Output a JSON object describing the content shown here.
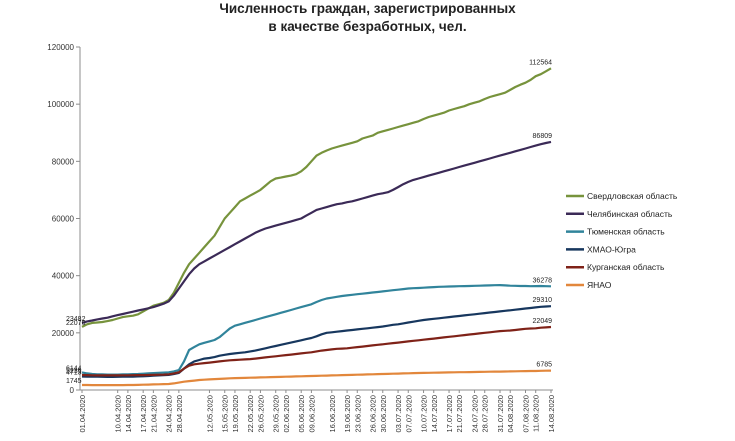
{
  "chart_data": {
    "type": "line",
    "title_lines": [
      "Численность граждан, зарегистрированных",
      "в качестве безработных, чел."
    ],
    "xlabel": "",
    "ylabel": "",
    "ylim": [
      0,
      120000
    ],
    "yticks": [
      0,
      20000,
      40000,
      60000,
      80000,
      100000,
      120000
    ],
    "grid": false,
    "legend_position": "right",
    "x": [
      "01.04.2020",
      "02.04.2020",
      "03.04.2020",
      "06.04.2020",
      "07.04.2020",
      "08.04.2020",
      "09.04.2020",
      "10.04.2020",
      "13.04.2020",
      "14.04.2020",
      "15.04.2020",
      "16.04.2020",
      "17.04.2020",
      "20.04.2020",
      "21.04.2020",
      "22.04.2020",
      "23.04.2020",
      "24.04.2020",
      "27.04.2020",
      "28.04.2020",
      "29.04.2020",
      "30.04.2020",
      "06.05.2020",
      "07.05.2020",
      "08.05.2020",
      "12.05.2020",
      "13.05.2020",
      "14.05.2020",
      "15.05.2020",
      "18.05.2020",
      "19.05.2020",
      "20.05.2020",
      "21.05.2020",
      "22.05.2020",
      "25.05.2020",
      "26.05.2020",
      "27.05.2020",
      "28.05.2020",
      "29.05.2020",
      "01.06.2020",
      "02.06.2020",
      "03.06.2020",
      "04.06.2020",
      "05.06.2020",
      "08.06.2020",
      "09.06.2020",
      "10.06.2020",
      "11.06.2020",
      "15.06.2020",
      "16.06.2020",
      "17.06.2020",
      "18.06.2020",
      "19.06.2020",
      "22.06.2020",
      "23.06.2020",
      "24.06.2020",
      "25.06.2020",
      "26.06.2020",
      "29.06.2020",
      "30.06.2020",
      "01.07.2020",
      "02.07.2020",
      "03.07.2020",
      "06.07.2020",
      "07.07.2020",
      "08.07.2020",
      "09.07.2020",
      "10.07.2020",
      "13.07.2020",
      "14.07.2020",
      "15.07.2020",
      "16.07.2020",
      "17.07.2020",
      "20.07.2020",
      "21.07.2020",
      "22.07.2020",
      "23.07.2020",
      "24.07.2020",
      "27.07.2020",
      "28.07.2020",
      "29.07.2020",
      "30.07.2020",
      "31.07.2020",
      "03.08.2020",
      "04.08.2020",
      "05.08.2020",
      "06.08.2020",
      "07.08.2020",
      "10.08.2020",
      "11.08.2020",
      "12.08.2020",
      "13.08.2020",
      "14.08.2020"
    ],
    "x_tick_labels": [
      "01.04.2020",
      "10.04.2020",
      "14.04.2020",
      "17.04.2020",
      "21.04.2020",
      "24.04.2020",
      "28.04.2020",
      "01.05.2020",
      "12.05.2020",
      "15.05.2020",
      "19.05.2020",
      "22.05.2020",
      "26.05.2020",
      "29.05.2020",
      "02.06.2020",
      "05.06.2020",
      "09.06.2020",
      "16.06.2020",
      "19.06.2020",
      "23.06.2020",
      "26.06.2020",
      "30.06.2020",
      "03.07.2020",
      "07.07.2020",
      "10.07.2020",
      "14.07.2020",
      "17.07.2020",
      "21.07.2020",
      "24.07.2020",
      "28.07.2020",
      "31.07.2020",
      "04.08.2020",
      "07.08.2020",
      "11.08.2020",
      "14.08.2020"
    ],
    "series": [
      {
        "name": "Свердловская область",
        "color": "#77933c",
        "values": [
          22076,
          23000,
          23482,
          23600,
          23800,
          24100,
          24500,
          25000,
          25500,
          25800,
          26000,
          26500,
          27500,
          28500,
          29500,
          30000,
          30500,
          31500,
          34000,
          37500,
          41000,
          44000,
          46000,
          48000,
          50000,
          52000,
          54000,
          57000,
          60000,
          62000,
          64000,
          66000,
          67000,
          68000,
          69000,
          70000,
          71500,
          73000,
          74000,
          74300,
          74700,
          75000,
          75500,
          76500,
          78000,
          80000,
          82000,
          83000,
          83800,
          84500,
          85000,
          85500,
          86000,
          86500,
          87000,
          88000,
          88500,
          89000,
          90000,
          90500,
          91000,
          91500,
          92000,
          92500,
          93000,
          93500,
          94000,
          94800,
          95500,
          96000,
          96500,
          97000,
          97800,
          98300,
          98800,
          99300,
          100000,
          100500,
          101000,
          101800,
          102500,
          103000,
          103500,
          104000,
          105000,
          106000,
          106800,
          107500,
          108500,
          109800,
          110500,
          111500,
          112564
        ]
      },
      {
        "name": "Челябинская область",
        "color": "#3b2a57",
        "values": [
          23482,
          24000,
          24300,
          24700,
          25000,
          25300,
          25800,
          26200,
          26600,
          27000,
          27400,
          27800,
          28200,
          28600,
          29000,
          29600,
          30200,
          31000,
          33000,
          35500,
          38000,
          40500,
          42500,
          44000,
          45000,
          46000,
          47000,
          48000,
          49000,
          50000,
          51000,
          52000,
          53000,
          54000,
          55000,
          55800,
          56500,
          57000,
          57500,
          58000,
          58500,
          59000,
          59500,
          60000,
          61000,
          62000,
          63000,
          63500,
          64000,
          64500,
          65000,
          65300,
          65700,
          66000,
          66500,
          67000,
          67500,
          68000,
          68500,
          68800,
          69200,
          70000,
          71000,
          72000,
          72800,
          73500,
          74000,
          74500,
          75000,
          75500,
          76000,
          76500,
          77000,
          77500,
          78000,
          78500,
          79000,
          79500,
          80000,
          80500,
          81000,
          81500,
          82000,
          82500,
          83000,
          83500,
          84000,
          84500,
          85000,
          85500,
          86000,
          86400,
          86809
        ]
      },
      {
        "name": "Тюменская область",
        "color": "#31849b",
        "values": [
          6144,
          5800,
          5600,
          5500,
          5450,
          5400,
          5400,
          5400,
          5450,
          5500,
          5550,
          5600,
          5700,
          5800,
          5900,
          6000,
          6100,
          6200,
          6500,
          7000,
          10000,
          14000,
          15000,
          16000,
          16500,
          17000,
          17500,
          18500,
          20000,
          21500,
          22500,
          23000,
          23500,
          24000,
          24500,
          25000,
          25500,
          26000,
          26500,
          27000,
          27500,
          28000,
          28500,
          29000,
          29500,
          30000,
          30800,
          31500,
          32000,
          32300,
          32600,
          32900,
          33100,
          33300,
          33500,
          33700,
          33900,
          34100,
          34300,
          34500,
          34700,
          34900,
          35100,
          35300,
          35500,
          35600,
          35700,
          35800,
          35900,
          36000,
          36100,
          36150,
          36200,
          36250,
          36300,
          36350,
          36400,
          36450,
          36500,
          36550,
          36600,
          36650,
          36700,
          36600,
          36500,
          36450,
          36400,
          36400,
          36300,
          36350,
          36400,
          36300,
          36278
        ]
      },
      {
        "name": "ХМАО-Югра",
        "color": "#17375e",
        "values": [
          4713,
          4700,
          4680,
          4650,
          4620,
          4600,
          4600,
          4620,
          4650,
          4680,
          4700,
          4750,
          4800,
          4900,
          5000,
          5100,
          5200,
          5300,
          5600,
          6000,
          7500,
          9000,
          10000,
          10500,
          11000,
          11200,
          11500,
          12000,
          12300,
          12600,
          12800,
          13000,
          13200,
          13500,
          13800,
          14200,
          14600,
          15000,
          15400,
          15800,
          16200,
          16600,
          17000,
          17400,
          17800,
          18200,
          18800,
          19500,
          20000,
          20200,
          20400,
          20600,
          20800,
          21000,
          21200,
          21400,
          21600,
          21800,
          22000,
          22200,
          22500,
          22800,
          23000,
          23300,
          23600,
          23900,
          24200,
          24500,
          24700,
          24900,
          25100,
          25300,
          25500,
          25700,
          25900,
          26100,
          26300,
          26500,
          26700,
          26900,
          27100,
          27300,
          27500,
          27700,
          27900,
          28100,
          28300,
          28500,
          28700,
          28900,
          29100,
          29200,
          29310
        ]
      },
      {
        "name": "Курганская область",
        "color": "#7f2218",
        "values": [
          5236,
          5200,
          5150,
          5100,
          5100,
          5100,
          5100,
          5120,
          5140,
          5160,
          5180,
          5200,
          5220,
          5250,
          5300,
          5350,
          5400,
          5500,
          5800,
          6200,
          7500,
          8500,
          9000,
          9200,
          9400,
          9600,
          9800,
          10000,
          10200,
          10400,
          10500,
          10600,
          10700,
          10800,
          11000,
          11200,
          11400,
          11600,
          11800,
          12000,
          12200,
          12400,
          12600,
          12800,
          13000,
          13200,
          13500,
          13800,
          14000,
          14200,
          14400,
          14500,
          14600,
          14800,
          15000,
          15200,
          15400,
          15600,
          15800,
          16000,
          16200,
          16400,
          16600,
          16800,
          17000,
          17200,
          17400,
          17600,
          17800,
          18000,
          18200,
          18400,
          18600,
          18800,
          19000,
          19200,
          19400,
          19600,
          19800,
          20000,
          20200,
          20400,
          20600,
          20700,
          20800,
          21000,
          21200,
          21400,
          21500,
          21600,
          21800,
          21900,
          22049
        ]
      },
      {
        "name": "ЯНАО",
        "color": "#e2873c",
        "values": [
          1745,
          1740,
          1730,
          1720,
          1710,
          1700,
          1700,
          1710,
          1720,
          1740,
          1760,
          1800,
          1850,
          1900,
          1950,
          2000,
          2050,
          2100,
          2300,
          2600,
          2900,
          3100,
          3300,
          3500,
          3600,
          3700,
          3800,
          3900,
          4000,
          4100,
          4150,
          4200,
          4250,
          4300,
          4350,
          4400,
          4450,
          4500,
          4550,
          4600,
          4650,
          4700,
          4750,
          4800,
          4850,
          4900,
          4950,
          5000,
          5050,
          5100,
          5150,
          5200,
          5250,
          5300,
          5350,
          5400,
          5450,
          5500,
          5550,
          5600,
          5650,
          5700,
          5750,
          5800,
          5850,
          5900,
          5950,
          6000,
          6030,
          6060,
          6090,
          6120,
          6150,
          6180,
          6210,
          6240,
          6270,
          6300,
          6330,
          6360,
          6390,
          6420,
          6450,
          6480,
          6510,
          6540,
          6570,
          6600,
          6630,
          6660,
          6700,
          6740,
          6785
        ]
      }
    ],
    "data_labels": [
      {
        "series": 0,
        "point": "first",
        "text": "22076"
      },
      {
        "series": 0,
        "point": "last",
        "text": "112564"
      },
      {
        "series": 1,
        "point": "first",
        "text": "23482"
      },
      {
        "series": 1,
        "point": "last",
        "text": "86809"
      },
      {
        "series": 2,
        "point": "first",
        "text": "6144"
      },
      {
        "series": 2,
        "point": "last",
        "text": "36278"
      },
      {
        "series": 3,
        "point": "first",
        "text": "4713"
      },
      {
        "series": 3,
        "point": "last",
        "text": "29310"
      },
      {
        "series": 4,
        "point": "first",
        "text": "5236"
      },
      {
        "series": 4,
        "point": "last",
        "text": "22049"
      },
      {
        "series": 5,
        "point": "first",
        "text": "1745"
      },
      {
        "series": 5,
        "point": "last",
        "text": "6785"
      }
    ]
  }
}
